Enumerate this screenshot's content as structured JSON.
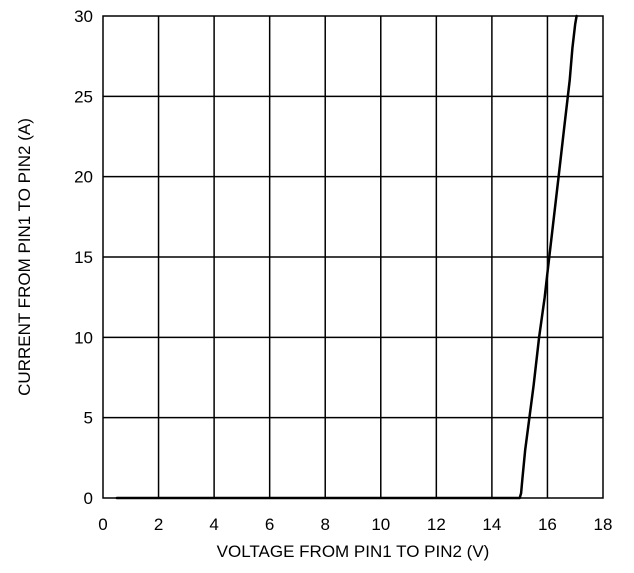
{
  "chart_data": {
    "type": "line",
    "title": "",
    "xlabel": "VOLTAGE FROM PIN1 TO PIN2 (V)",
    "ylabel": "CURRENT FROM PIN1 TO PIN2 (A)",
    "xlim": [
      0,
      18
    ],
    "ylim": [
      0,
      30
    ],
    "x_ticks": [
      0,
      2,
      4,
      6,
      8,
      10,
      12,
      14,
      16,
      18
    ],
    "y_ticks": [
      0,
      5,
      10,
      15,
      20,
      25,
      30
    ],
    "x_tick_labels": [
      "0",
      "2",
      "4",
      "6",
      "8",
      "10",
      "12",
      "14",
      "16",
      "18"
    ],
    "y_tick_labels": [
      "0",
      "5",
      "10",
      "15",
      "20",
      "25",
      "30"
    ],
    "grid": true,
    "series": [
      {
        "x": [
          0.5,
          2,
          4,
          6,
          8,
          10,
          12,
          13,
          14,
          14.8,
          15.0,
          15.05,
          15.1,
          15.2,
          15.35,
          15.5,
          15.7,
          15.9,
          16.0,
          16.2,
          16.4,
          16.6,
          16.8,
          16.9,
          17.0,
          17.05
        ],
        "values": [
          0,
          0,
          0,
          0,
          0,
          0,
          0,
          0,
          0,
          0,
          0,
          0.3,
          1.2,
          3.0,
          5.0,
          7.0,
          10.0,
          12.5,
          14.0,
          17.0,
          20.0,
          23.0,
          26.0,
          28.0,
          29.5,
          30.0
        ],
        "color": "#000000"
      }
    ]
  }
}
